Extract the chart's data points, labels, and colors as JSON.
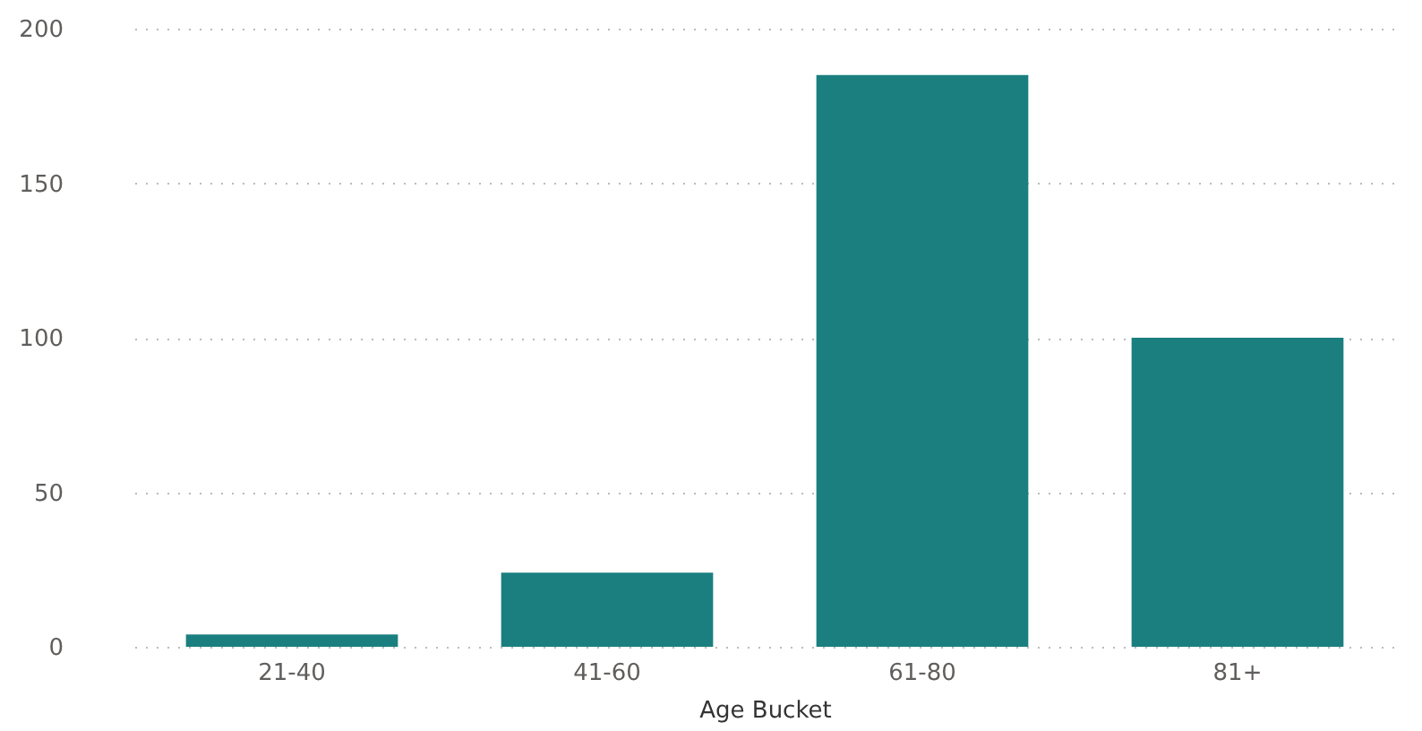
{
  "chart_data": {
    "type": "bar",
    "xlabel": "Age Bucket",
    "categories": [
      "21-40",
      "41-60",
      "61-80",
      "81+"
    ],
    "values": [
      4,
      24,
      185,
      100
    ],
    "color": "#1b7f80",
    "ylim": [
      0,
      200
    ],
    "yticks": [
      0,
      50,
      100,
      150,
      200
    ],
    "grid": "y"
  }
}
